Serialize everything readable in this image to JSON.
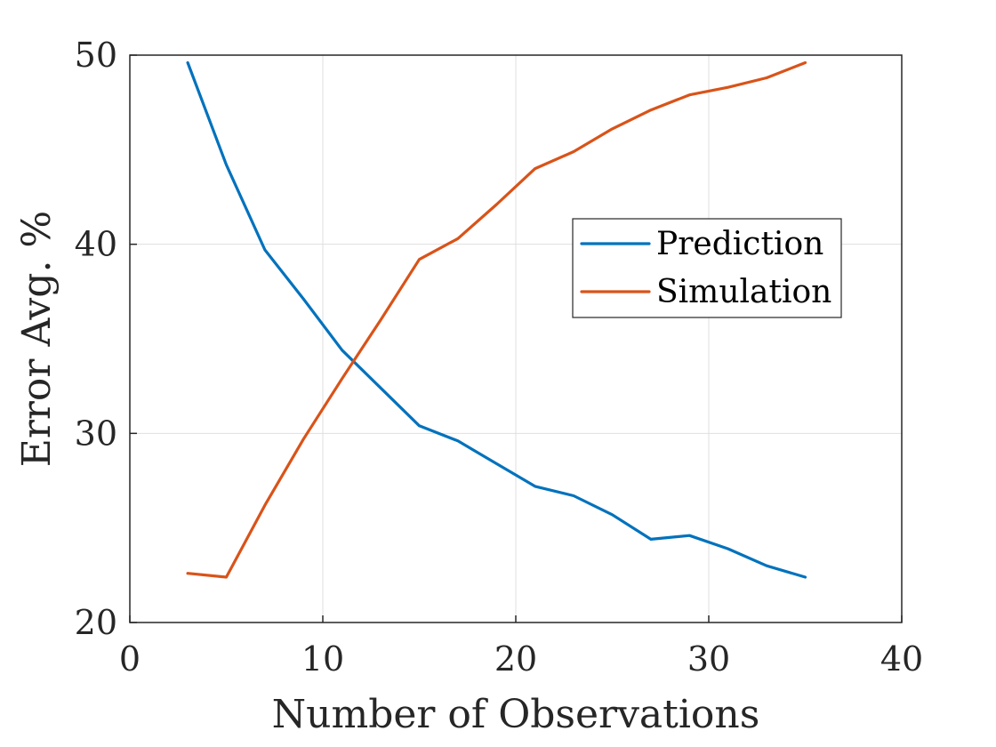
{
  "chart_data": {
    "type": "line",
    "xlabel": "Number of Observations",
    "ylabel": "Error Avg. %",
    "xlim": [
      0,
      40
    ],
    "ylim": [
      20,
      50
    ],
    "xticks": [
      0,
      10,
      20,
      30,
      40
    ],
    "yticks": [
      20,
      30,
      40,
      50
    ],
    "xtick_labels": [
      "0",
      "10",
      "20",
      "30",
      "40"
    ],
    "ytick_labels": [
      "20",
      "30",
      "40",
      "50"
    ],
    "grid": true,
    "legend_position": "right",
    "x": [
      3,
      5,
      7,
      9,
      11,
      13,
      15,
      17,
      19,
      21,
      23,
      25,
      27,
      29,
      31,
      33,
      35
    ],
    "series": [
      {
        "name": "Prediction",
        "color": "#0072BD",
        "values": [
          49.6,
          44.2,
          39.7,
          37.1,
          34.4,
          32.4,
          30.4,
          29.6,
          28.4,
          27.2,
          26.7,
          25.7,
          24.4,
          24.6,
          23.9,
          23.0,
          22.4
        ]
      },
      {
        "name": "Simulation",
        "color": "#D95319",
        "values": [
          22.6,
          22.4,
          26.2,
          29.7,
          32.9,
          36.0,
          39.2,
          40.3,
          42.1,
          44.0,
          44.9,
          46.1,
          47.1,
          47.9,
          48.3,
          48.8,
          49.6
        ]
      }
    ]
  }
}
